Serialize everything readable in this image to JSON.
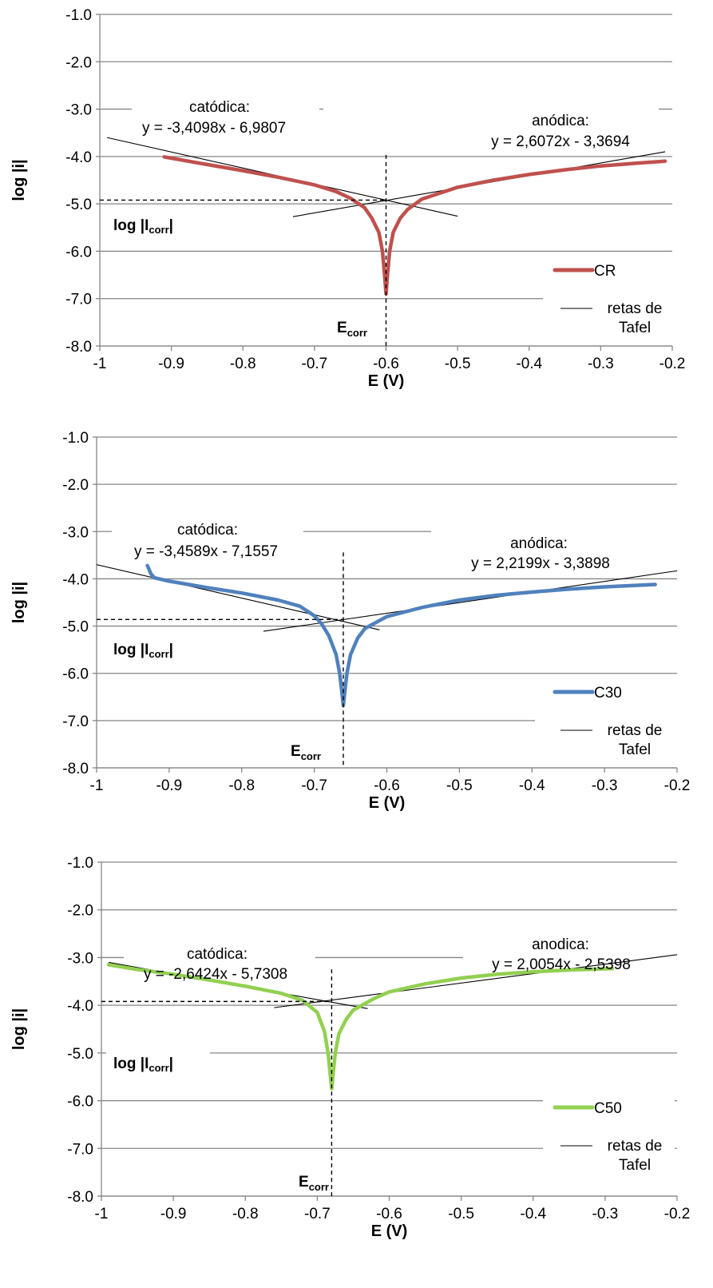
{
  "charts": [
    {
      "chart_data": {
        "type": "line",
        "xlabel": "E (V)",
        "ylabel": "log  |i|",
        "xlim": [
          -1,
          -0.2
        ],
        "ylim": [
          -8.0,
          -1.0
        ],
        "x_ticks": [
          "-1",
          "-0.9",
          "-0.8",
          "-0.7",
          "-0.6",
          "-0.5",
          "-0.4",
          "-0.3",
          "-0.2"
        ],
        "y_ticks": [
          "-1.0",
          "-2.0",
          "-3.0",
          "-4.0",
          "-5.0",
          "-6.0",
          "-7.0",
          "-8.0"
        ],
        "grid": "horizontal",
        "legend_position": "bottom-right",
        "series": [
          {
            "name": "CR",
            "color": "#c0504d",
            "x": [
              -0.91,
              -0.85,
              -0.8,
              -0.75,
              -0.7,
              -0.67,
              -0.65,
              -0.63,
              -0.62,
              -0.61,
              -0.605,
              -0.602,
              -0.6,
              -0.598,
              -0.595,
              -0.59,
              -0.58,
              -0.57,
              -0.55,
              -0.5,
              -0.45,
              -0.4,
              -0.35,
              -0.3,
              -0.25,
              -0.21
            ],
            "y": [
              -4.01,
              -4.17,
              -4.3,
              -4.44,
              -4.6,
              -4.74,
              -4.88,
              -5.08,
              -5.3,
              -5.6,
              -6.0,
              -6.5,
              -6.9,
              -6.5,
              -6.0,
              -5.6,
              -5.3,
              -5.12,
              -4.9,
              -4.65,
              -4.5,
              -4.38,
              -4.28,
              -4.2,
              -4.14,
              -4.1
            ]
          },
          {
            "name": "retas de Tafel",
            "color": "#000000",
            "lines": [
              {
                "x": [
                  -0.99,
                  -0.5
                ],
                "y": [
                  -3.6,
                  -5.26
                ]
              },
              {
                "x": [
                  -0.73,
                  -0.21
                ],
                "y": [
                  -5.27,
                  -3.9
                ]
              }
            ]
          }
        ],
        "e_corr": -0.6,
        "log_i_corr": -4.92,
        "annotations": {
          "cathodic_title": "catódica:",
          "cathodic_eq": "y = -3,4098x - 6,9807",
          "anodic_title": "anódica:",
          "anodic_eq": "y = 2,6072x - 3,3694",
          "icorr_label": "log |I",
          "icorr_sub": "corr",
          "icorr_end": "|",
          "ecorr_label": "E",
          "ecorr_sub": "corr"
        },
        "legend": [
          "CR",
          "retas de",
          "Tafel"
        ]
      }
    },
    {
      "chart_data": {
        "type": "line",
        "xlabel": "E (V)",
        "ylabel": "log  |i|",
        "xlim": [
          -1,
          -0.2
        ],
        "ylim": [
          -8.0,
          -1.0
        ],
        "x_ticks": [
          "-1",
          "-0.9",
          "-0.8",
          "-0.7",
          "-0.6",
          "-0.5",
          "-0.4",
          "-0.3",
          "-0.2"
        ],
        "y_ticks": [
          "-1.0",
          "-2.0",
          "-3.0",
          "-4.0",
          "-5.0",
          "-6.0",
          "-7.0",
          "-8.0"
        ],
        "grid": "horizontal",
        "legend_position": "bottom-right",
        "series": [
          {
            "name": "C30",
            "color": "#4f81bd",
            "x": [
              -0.93,
              -0.925,
              -0.92,
              -0.9,
              -0.85,
              -0.8,
              -0.75,
              -0.72,
              -0.7,
              -0.69,
              -0.68,
              -0.67,
              -0.665,
              -0.662,
              -0.66,
              -0.658,
              -0.655,
              -0.65,
              -0.64,
              -0.63,
              -0.6,
              -0.55,
              -0.5,
              -0.45,
              -0.4,
              -0.35,
              -0.3,
              -0.23
            ],
            "y": [
              -3.72,
              -3.9,
              -3.98,
              -4.05,
              -4.18,
              -4.3,
              -4.45,
              -4.58,
              -4.78,
              -4.95,
              -5.2,
              -5.6,
              -6.0,
              -6.4,
              -6.68,
              -6.4,
              -6.0,
              -5.6,
              -5.25,
              -5.05,
              -4.8,
              -4.6,
              -4.45,
              -4.35,
              -4.28,
              -4.22,
              -4.17,
              -4.12
            ]
          },
          {
            "name": "retas de Tafel",
            "color": "#000000",
            "lines": [
              {
                "x": [
                  -1.0,
                  -0.61
                ],
                "y": [
                  -3.7,
                  -5.08
                ]
              },
              {
                "x": [
                  -0.77,
                  -0.2
                ],
                "y": [
                  -5.11,
                  -3.83
                ]
              }
            ]
          }
        ],
        "e_corr": -0.66,
        "log_i_corr": -4.86,
        "annotations": {
          "cathodic_title": "catódica:",
          "cathodic_eq": "y = -3,4589x - 7,1557",
          "anodic_title": "anódica:",
          "anodic_eq": "y = 2,2199x - 3,3898",
          "icorr_label": "log |I",
          "icorr_sub": "corr",
          "icorr_end": "|",
          "ecorr_label": "E",
          "ecorr_sub": "corr"
        },
        "legend": [
          "C30",
          "retas de",
          "Tafel"
        ]
      }
    },
    {
      "chart_data": {
        "type": "line",
        "xlabel": "E (V)",
        "ylabel": "log  |i|",
        "xlim": [
          -1,
          -0.2
        ],
        "ylim": [
          -8.0,
          -1.0
        ],
        "x_ticks": [
          "-1",
          "-0.9",
          "-0.8",
          "-0.7",
          "-0.6",
          "-0.5",
          "-0.4",
          "-0.3",
          "-0.2"
        ],
        "y_ticks": [
          "-1.0",
          "-2.0",
          "-3.0",
          "-4.0",
          "-5.0",
          "-6.0",
          "-7.0",
          "-8.0"
        ],
        "grid": "horizontal",
        "legend_position": "bottom-right",
        "series": [
          {
            "name": "C50",
            "color": "#92d050",
            "x": [
              -0.99,
              -0.95,
              -0.9,
              -0.85,
              -0.8,
              -0.75,
              -0.72,
              -0.7,
              -0.69,
              -0.685,
              -0.682,
              -0.68,
              -0.678,
              -0.675,
              -0.67,
              -0.66,
              -0.65,
              -0.62,
              -0.6,
              -0.55,
              -0.5,
              -0.45,
              -0.4,
              -0.35,
              -0.29
            ],
            "y": [
              -3.15,
              -3.25,
              -3.35,
              -3.47,
              -3.6,
              -3.75,
              -3.9,
              -4.15,
              -4.55,
              -5.0,
              -5.45,
              -5.75,
              -5.45,
              -5.0,
              -4.6,
              -4.3,
              -4.1,
              -3.85,
              -3.72,
              -3.55,
              -3.43,
              -3.35,
              -3.3,
              -3.26,
              -3.23
            ]
          },
          {
            "name": "retas de Tafel",
            "color": "#000000",
            "lines": [
              {
                "x": [
                  -0.99,
                  -0.63
                ],
                "y": [
                  -3.1,
                  -4.07
                ]
              },
              {
                "x": [
                  -0.76,
                  -0.2
                ],
                "y": [
                  -4.05,
                  -2.94
                ]
              }
            ]
          }
        ],
        "e_corr": -0.68,
        "log_i_corr": -3.92,
        "annotations": {
          "cathodic_title": "catódica:",
          "cathodic_eq": "y = -2,6424x - 5,7308",
          "anodic_title": "anodica:",
          "anodic_eq": "y = 2,0054x - 2,5398",
          "icorr_label": "log |I",
          "icorr_sub": "corr",
          "icorr_end": "|",
          "ecorr_label": "E",
          "ecorr_sub": "corr"
        },
        "legend": [
          "C50",
          "retas de",
          "Tafel"
        ]
      }
    }
  ]
}
